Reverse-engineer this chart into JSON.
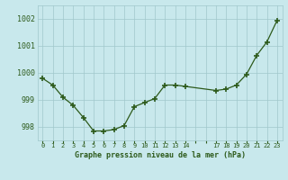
{
  "hours": [
    0,
    1,
    2,
    3,
    4,
    5,
    6,
    7,
    8,
    9,
    10,
    11,
    12,
    13,
    14,
    17,
    18,
    19,
    20,
    21,
    22,
    23
  ],
  "pressures": [
    999.8,
    999.55,
    999.1,
    998.8,
    998.35,
    997.85,
    997.85,
    997.9,
    998.05,
    998.75,
    998.9,
    999.05,
    999.55,
    999.55,
    999.5,
    999.35,
    999.4,
    999.55,
    999.95,
    1000.65,
    1001.15,
    1001.95
  ],
  "yticks": [
    998,
    999,
    1000,
    1001,
    1002
  ],
  "line_color": "#2d5a1b",
  "marker_color": "#2d5a1b",
  "bg_color": "#c8e8ec",
  "grid_color": "#a0c8cc",
  "title": "Graphe pression niveau de la mer (hPa)",
  "title_color": "#2d5a1b",
  "ylim": [
    997.5,
    1002.5
  ],
  "xlim": [
    -0.5,
    23.5
  ]
}
